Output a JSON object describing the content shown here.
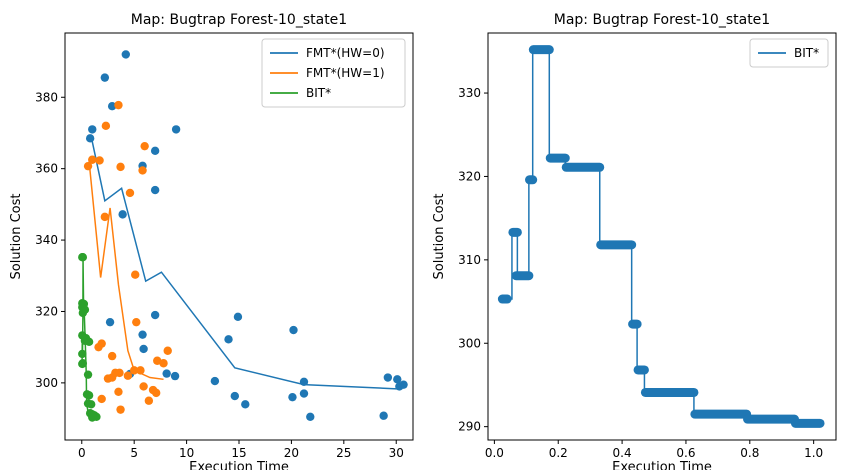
{
  "chart_data": [
    {
      "type": "scatter",
      "title": "Map: Bugtrap Forest-10_state1",
      "xlabel": "Execution Time",
      "ylabel": "Solution Cost",
      "xlim": [
        -1.6,
        31.6
      ],
      "ylim": [
        284,
        398
      ],
      "xticks": [
        0,
        5,
        10,
        15,
        20,
        25,
        30
      ],
      "yticks": [
        300,
        320,
        340,
        360,
        380
      ],
      "grid": false,
      "legend_position": "top-right",
      "series": [
        {
          "name": "FMT*(HW=0)",
          "color": "#1f77b4",
          "line": [
            [
              0.9,
              369
            ],
            [
              2.2,
              351
            ],
            [
              3.8,
              354.5
            ],
            [
              6.1,
              328.5
            ],
            [
              7.6,
              331
            ],
            [
              14.6,
              304.2
            ],
            [
              21.2,
              299.5
            ],
            [
              30.3,
              298.3
            ]
          ],
          "points": [
            [
              4.2,
              392
            ],
            [
              2.2,
              385.5
            ],
            [
              2.9,
              377.5
            ],
            [
              1.0,
              371
            ],
            [
              0.8,
              368.5
            ],
            [
              9.0,
              371
            ],
            [
              7.0,
              365
            ],
            [
              5.8,
              360.8
            ],
            [
              7.0,
              354
            ],
            [
              3.9,
              347.2
            ],
            [
              2.7,
              317
            ],
            [
              7.0,
              319
            ],
            [
              5.8,
              313.5
            ],
            [
              5.9,
              309.5
            ],
            [
              4.6,
              302.5
            ],
            [
              8.1,
              302.6
            ],
            [
              8.9,
              301.9
            ],
            [
              14.0,
              312.2
            ],
            [
              14.9,
              318.5
            ],
            [
              12.7,
              300.5
            ],
            [
              14.6,
              296.3
            ],
            [
              15.6,
              294
            ],
            [
              20.2,
              314.8
            ],
            [
              21.2,
              300.3
            ],
            [
              21.2,
              297
            ],
            [
              20.1,
              296
            ],
            [
              21.8,
              290.5
            ],
            [
              29.2,
              301.5
            ],
            [
              30.1,
              301
            ],
            [
              30.3,
              299
            ],
            [
              30.7,
              299.5
            ],
            [
              28.8,
              290.8
            ]
          ]
        },
        {
          "name": "FMT*(HW=1)",
          "color": "#ff7f0e",
          "line": [
            [
              0.7,
              362
            ],
            [
              1.8,
              329.5
            ],
            [
              2.7,
              349
            ],
            [
              3.5,
              327.5
            ],
            [
              4.4,
              309
            ],
            [
              5.0,
              303.5
            ],
            [
              6.5,
              301.5
            ],
            [
              7.8,
              301
            ]
          ],
          "points": [
            [
              3.5,
              377.8
            ],
            [
              2.3,
              372
            ],
            [
              0.6,
              360.7
            ],
            [
              1.0,
              362.5
            ],
            [
              1.7,
              362.3
            ],
            [
              3.7,
              360.5
            ],
            [
              6.0,
              366.3
            ],
            [
              5.8,
              359.5
            ],
            [
              4.6,
              353.2
            ],
            [
              2.2,
              346.5
            ],
            [
              5.1,
              330.3
            ],
            [
              5.2,
              317
            ],
            [
              1.6,
              310
            ],
            [
              1.9,
              311
            ],
            [
              1.9,
              295.5
            ],
            [
              2.5,
              301.2
            ],
            [
              2.9,
              307.5
            ],
            [
              2.9,
              301.5
            ],
            [
              3.2,
              302.8
            ],
            [
              3.6,
              302.8
            ],
            [
              3.5,
              297.5
            ],
            [
              3.7,
              292.5
            ],
            [
              4.4,
              302
            ],
            [
              5.0,
              303.5
            ],
            [
              5.6,
              303.5
            ],
            [
              5.9,
              299
            ],
            [
              6.4,
              295
            ],
            [
              6.8,
              298
            ],
            [
              7.1,
              297.2
            ],
            [
              7.2,
              306.2
            ],
            [
              7.8,
              305.5
            ],
            [
              8.2,
              309
            ]
          ]
        },
        {
          "name": "BIT*",
          "color": "#2ca02c",
          "line": [
            [
              0.03,
              305.3
            ],
            [
              0.05,
              313.3
            ],
            [
              0.07,
              308.1
            ],
            [
              0.11,
              319.6
            ],
            [
              0.12,
              335.2
            ],
            [
              0.17,
              322.2
            ],
            [
              0.22,
              321.1
            ],
            [
              0.33,
              311.8
            ],
            [
              0.43,
              302.3
            ],
            [
              0.45,
              296.8
            ],
            [
              0.47,
              294.1
            ],
            [
              0.62,
              291.5
            ],
            [
              0.79,
              290.9
            ],
            [
              0.94,
              290.4
            ],
            [
              1.02,
              290.4
            ]
          ],
          "points": [
            [
              0.05,
              335.2
            ],
            [
              0.1,
              335.2
            ],
            [
              0.05,
              322.3
            ],
            [
              0.2,
              322.1
            ],
            [
              0.05,
              321.2
            ],
            [
              0.3,
              320.5
            ],
            [
              0.1,
              319.6
            ],
            [
              0.05,
              313.3
            ],
            [
              0.4,
              312.5
            ],
            [
              0.3,
              311.8
            ],
            [
              0.7,
              311.5
            ],
            [
              0.05,
              308.1
            ],
            [
              0.05,
              305.3
            ],
            [
              0.1,
              305.5
            ],
            [
              0.6,
              302.3
            ],
            [
              0.5,
              296.8
            ],
            [
              0.7,
              296.5
            ],
            [
              0.6,
              294.2
            ],
            [
              0.9,
              294.0
            ],
            [
              0.8,
              291.5
            ],
            [
              1.0,
              291.2
            ],
            [
              1.2,
              290.9
            ],
            [
              1.4,
              290.5
            ],
            [
              1.0,
              290.3
            ]
          ]
        }
      ]
    },
    {
      "type": "line",
      "title": "Map: Bugtrap Forest-10_state1",
      "xlabel": "Execution Time",
      "ylabel": "Solution Cost",
      "xlim": [
        -0.02,
        1.07
      ],
      "ylim": [
        288.4,
        337.2
      ],
      "xticks": [
        0.0,
        0.2,
        0.4,
        0.6,
        0.8,
        1.0
      ],
      "xtick_labels": [
        "0.0",
        "0.2",
        "0.4",
        "0.6",
        "0.8",
        "1.0"
      ],
      "yticks": [
        290,
        300,
        310,
        320,
        330
      ],
      "grid": false,
      "legend_position": "top-right",
      "series": [
        {
          "name": "BIT*",
          "color": "#1f77b4",
          "line": [
            [
              0.025,
              305.3
            ],
            [
              0.055,
              305.3
            ],
            [
              0.055,
              313.3
            ],
            [
              0.072,
              313.3
            ],
            [
              0.072,
              308.1
            ],
            [
              0.108,
              308.1
            ],
            [
              0.108,
              319.6
            ],
            [
              0.12,
              319.6
            ],
            [
              0.12,
              335.2
            ],
            [
              0.172,
              335.2
            ],
            [
              0.172,
              322.2
            ],
            [
              0.222,
              322.2
            ],
            [
              0.222,
              321.1
            ],
            [
              0.33,
              321.1
            ],
            [
              0.33,
              311.8
            ],
            [
              0.43,
              311.8
            ],
            [
              0.43,
              302.3
            ],
            [
              0.447,
              302.3
            ],
            [
              0.447,
              296.8
            ],
            [
              0.47,
              296.8
            ],
            [
              0.47,
              294.1
            ],
            [
              0.625,
              294.1
            ],
            [
              0.625,
              291.5
            ],
            [
              0.79,
              291.5
            ],
            [
              0.79,
              290.9
            ],
            [
              0.94,
              290.9
            ],
            [
              0.94,
              290.4
            ],
            [
              1.02,
              290.4
            ]
          ],
          "segments": [
            [
              0.025,
              0.04,
              305.3
            ],
            [
              0.058,
              0.072,
              313.3
            ],
            [
              0.068,
              0.108,
              308.1
            ],
            [
              0.11,
              0.12,
              319.6
            ],
            [
              0.122,
              0.172,
              335.2
            ],
            [
              0.175,
              0.222,
              322.2
            ],
            [
              0.225,
              0.33,
              321.1
            ],
            [
              0.333,
              0.43,
              311.8
            ],
            [
              0.433,
              0.447,
              302.3
            ],
            [
              0.45,
              0.47,
              296.8
            ],
            [
              0.473,
              0.625,
              294.1
            ],
            [
              0.628,
              0.79,
              291.5
            ],
            [
              0.793,
              0.94,
              290.9
            ],
            [
              0.943,
              1.02,
              290.4
            ]
          ]
        }
      ]
    }
  ]
}
